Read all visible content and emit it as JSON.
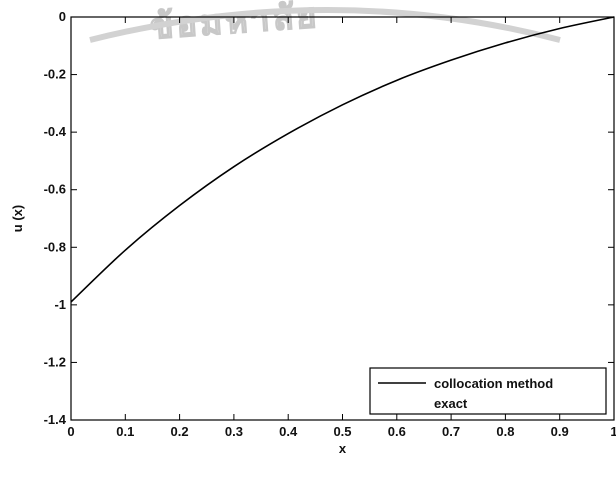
{
  "watermark": "ข้อมหาลัย",
  "chart_data": {
    "type": "line",
    "title": "",
    "xlabel": "x",
    "ylabel": "u (x)",
    "xlim": [
      0,
      1
    ],
    "ylim": [
      -1.4,
      0
    ],
    "xticks": [
      "0",
      "0.1",
      "0.2",
      "0.3",
      "0.4",
      "0.5",
      "0.6",
      "0.7",
      "0.8",
      "0.9",
      "1"
    ],
    "yticks": [
      "0",
      "-0.2",
      "-0.4",
      "-0.6",
      "-0.8",
      "-1",
      "-1.2",
      "-1.4"
    ],
    "grid": false,
    "legend_position": "bottom-right",
    "x": [
      0,
      0.1,
      0.2,
      0.3,
      0.4,
      0.5,
      0.6,
      0.7,
      0.8,
      0.9,
      1.0
    ],
    "series": [
      {
        "name": "collocation method",
        "style": "solid",
        "color": "#000000",
        "values": [
          -0.99,
          -0.81,
          -0.655,
          -0.52,
          -0.405,
          -0.305,
          -0.22,
          -0.15,
          -0.09,
          -0.04,
          0
        ]
      },
      {
        "name": "exact",
        "style": "none",
        "color": "#000000",
        "values": [
          -0.99,
          -0.81,
          -0.655,
          -0.52,
          -0.405,
          -0.305,
          -0.22,
          -0.15,
          -0.09,
          -0.04,
          0
        ]
      }
    ]
  }
}
